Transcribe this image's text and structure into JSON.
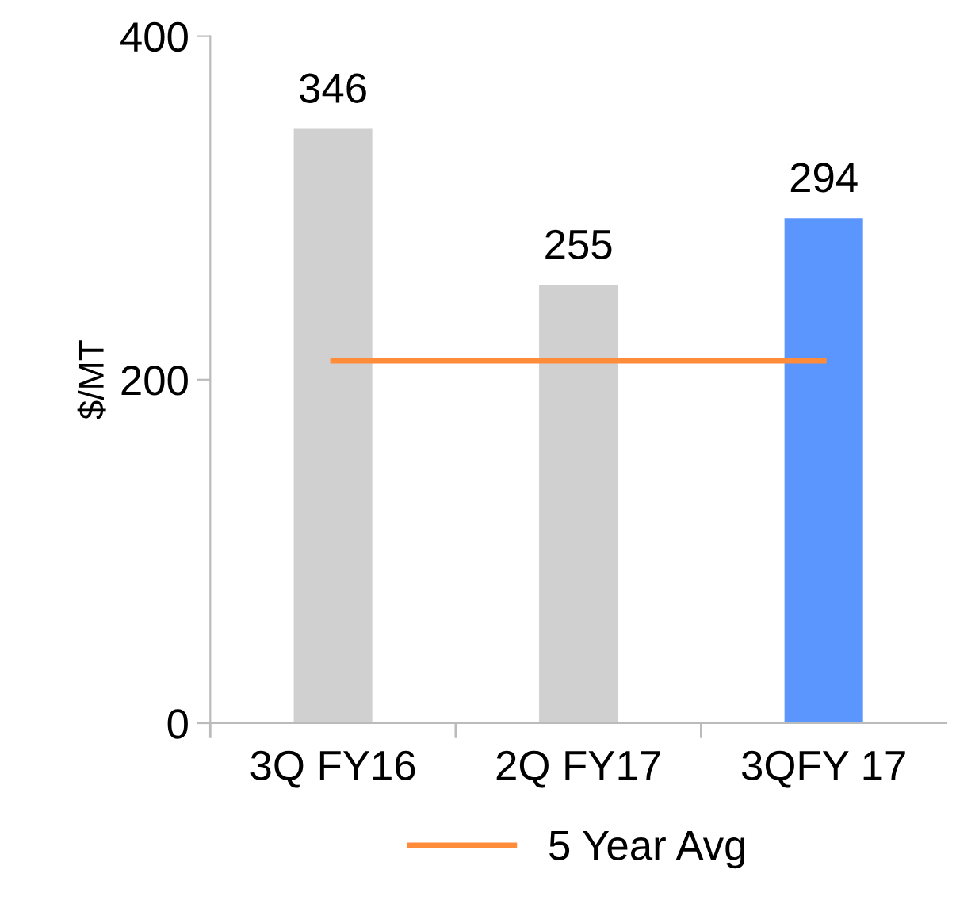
{
  "chart_data": {
    "type": "bar",
    "ylabel": "$/MT",
    "categories": [
      "3Q FY16",
      "2Q FY17",
      "3QFY 17"
    ],
    "ylim": [
      0,
      400
    ],
    "yticks": [
      0,
      200,
      400
    ],
    "grid": false,
    "legend": "bottom",
    "series": [
      {
        "colors": [
          "#d0d0d0",
          "#d0d0d0",
          "#5b96ff"
        ],
        "values": [
          346,
          255,
          294
        ],
        "value_labels": [
          "346",
          "255",
          "294"
        ]
      },
      {
        "type": "line",
        "name": "5 Year Avg",
        "color": "#ff8c3a",
        "values": [
          211,
          211,
          211
        ],
        "marker": "none",
        "line_style": "solid"
      }
    ]
  }
}
